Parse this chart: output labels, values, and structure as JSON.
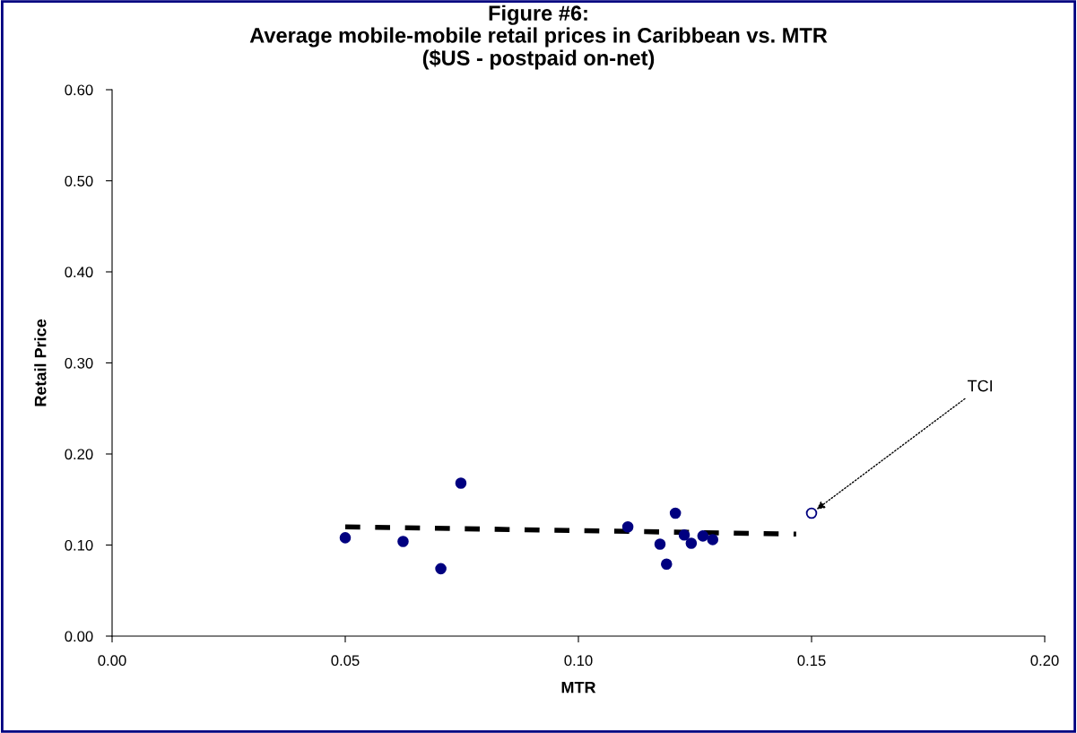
{
  "chart_data": {
    "type": "scatter",
    "title": "Figure #6:\nAverage mobile-mobile retail prices in Caribbean vs. MTR\n($US - postpaid on-net)",
    "xlabel": "MTR",
    "ylabel": "Retail Price",
    "series": [
      {
        "color": "#000080",
        "marker": "circle",
        "x": [
          0.05,
          0.0624,
          0.0705,
          0.0748,
          0.1106,
          0.1208,
          0.1175,
          0.1189,
          0.1227,
          0.1242,
          0.1267,
          0.1288
        ],
        "values": [
          0.108,
          0.104,
          0.074,
          0.168,
          0.12,
          0.135,
          0.101,
          0.079,
          0.111,
          0.102,
          0.11,
          0.106
        ]
      },
      {
        "color": "#ffffff",
        "marker": "circle",
        "x": [
          0.15
        ],
        "values": [
          0.135
        ]
      },
      {
        "type": "line",
        "color": "#000000",
        "line_style": "dashed",
        "x": [
          0.05,
          0.1467
        ],
        "values": [
          0.12,
          0.112
        ]
      }
    ],
    "annotations": [
      {
        "text": "TCI",
        "x": 0.15,
        "y": 0.135
      }
    ],
    "xlim": [
      0,
      0.2
    ],
    "xticks": [
      {
        "value": 0,
        "label": "0.00"
      },
      {
        "value": 0.05,
        "label": "0.05"
      },
      {
        "value": 0.1,
        "label": "0.10"
      },
      {
        "value": 0.15,
        "label": "0.15"
      },
      {
        "value": 0.2,
        "label": "0.20"
      }
    ],
    "ylim": [
      0,
      0.6
    ],
    "yticks": [
      {
        "value": 0,
        "label": "0.00"
      },
      {
        "value": 0.1,
        "label": "0.10"
      },
      {
        "value": 0.2,
        "label": "0.20"
      },
      {
        "value": 0.3,
        "label": "0.30"
      },
      {
        "value": 0.4,
        "label": "0.40"
      },
      {
        "value": 0.5,
        "label": "0.50"
      },
      {
        "value": 0.6,
        "label": "0.60"
      }
    ],
    "grid": false,
    "legend": false
  }
}
